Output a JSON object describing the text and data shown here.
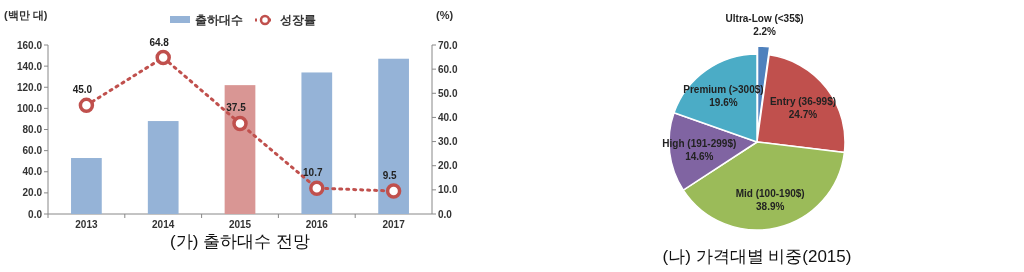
{
  "chart_data": [
    {
      "type": "bar",
      "title": "(가) 출하대수 전망",
      "ylabel": "(백만 대)",
      "y2label": "(%)",
      "categories": [
        "2013",
        "2014",
        "2015",
        "2016",
        "2017"
      ],
      "series": [
        {
          "name": "출하대수",
          "type": "bar",
          "color": "#95b3d7",
          "colors": [
            "#95b3d7",
            "#95b3d7",
            "#d99694",
            "#95b3d7",
            "#95b3d7"
          ],
          "values": [
            53,
            88,
            122,
            134,
            147
          ]
        },
        {
          "name": "성장률",
          "type": "line",
          "axis": "y2",
          "color": "#c0504d",
          "values": [
            45.0,
            64.8,
            37.5,
            10.7,
            9.5
          ],
          "value_labels": [
            "45.0",
            "64.8",
            "37.5",
            "10.7",
            "9.5"
          ]
        }
      ],
      "marker": "circle",
      "line_style": "dotted",
      "legend": "top",
      "grid": false,
      "ylim": [
        0,
        160
      ],
      "yticks": [
        {
          "value": 0,
          "label": "0.0"
        },
        {
          "value": 20,
          "label": "20.0"
        },
        {
          "value": 40,
          "label": "40.0"
        },
        {
          "value": 60,
          "label": "60.0"
        },
        {
          "value": 80,
          "label": "80.0"
        },
        {
          "value": 100,
          "label": "100.0"
        },
        {
          "value": 120,
          "label": "120.0"
        },
        {
          "value": 140,
          "label": "140.0"
        },
        {
          "value": 160,
          "label": "160.0"
        }
      ],
      "y2lim": [
        0,
        70
      ],
      "y2ticks": [
        {
          "value": 0,
          "label": "0.0"
        },
        {
          "value": 10,
          "label": "10.0"
        },
        {
          "value": 20,
          "label": "20.0"
        },
        {
          "value": 30,
          "label": "30.0"
        },
        {
          "value": 40,
          "label": "40.0"
        },
        {
          "value": 50,
          "label": "50.0"
        },
        {
          "value": 60,
          "label": "60.0"
        },
        {
          "value": 70,
          "label": "70.0"
        }
      ]
    },
    {
      "type": "pie",
      "title": "(나) 가격대별 비중(2015)",
      "categories": [
        "Ultra-Low (<35$)",
        "Entry (36-99$)",
        "Mid (100-190$)",
        "High (191-299$)",
        "Premium (>300$)"
      ],
      "values": [
        2.2,
        24.7,
        38.9,
        14.6,
        19.6
      ],
      "value_labels": [
        "2.2%",
        "24.7%",
        "38.9%",
        "14.6%",
        "19.6%"
      ],
      "colors": [
        "#4f81bd",
        "#c0504d",
        "#9bbb59",
        "#8064a2",
        "#4bacc6"
      ]
    }
  ]
}
